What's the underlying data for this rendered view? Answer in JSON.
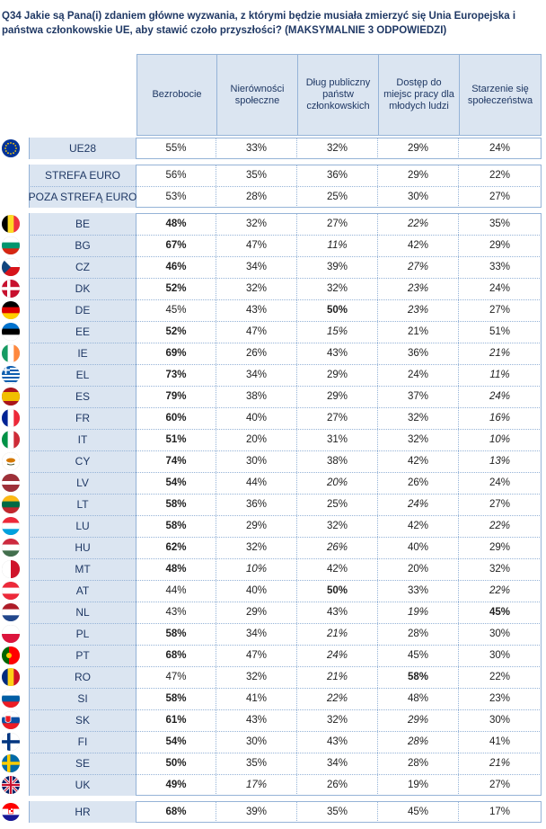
{
  "title": "Q34 Jakie są Pana(i) zdaniem główne wyzwania, z którymi będzie musiała zmierzyć się Unia Europejska i państwa członkowskie UE, aby stawić czoło przyszłości? (MAKSYMALNIE 3 ODPOWIEDZI)",
  "columns": [
    "Bezrobocie",
    "Nierówności społeczne",
    "Dług publiczny państw członkowskich",
    "Dostęp do miejsc pracy dla młodych ludzi",
    "Starzenie się społeczeństwa"
  ],
  "rows": [
    {
      "label": "UE28",
      "flag": "eu",
      "values": [
        "55%",
        "33%",
        "32%",
        "29%",
        "24%"
      ],
      "bold": [],
      "italic": []
    },
    {
      "label": "STREFA EURO",
      "flag": "",
      "values": [
        "56%",
        "35%",
        "36%",
        "29%",
        "22%"
      ],
      "bold": [],
      "italic": []
    },
    {
      "label": "POZA STREFĄ EURO",
      "flag": "",
      "values": [
        "53%",
        "28%",
        "25%",
        "30%",
        "27%"
      ],
      "bold": [],
      "italic": []
    },
    {
      "label": "BE",
      "flag": "be",
      "values": [
        "48%",
        "32%",
        "27%",
        "22%",
        "35%"
      ],
      "bold": [
        0
      ],
      "italic": [
        3
      ]
    },
    {
      "label": "BG",
      "flag": "bg",
      "values": [
        "67%",
        "47%",
        "11%",
        "42%",
        "29%"
      ],
      "bold": [
        0
      ],
      "italic": [
        2
      ]
    },
    {
      "label": "CZ",
      "flag": "cz",
      "values": [
        "46%",
        "34%",
        "39%",
        "27%",
        "33%"
      ],
      "bold": [
        0
      ],
      "italic": [
        3
      ]
    },
    {
      "label": "DK",
      "flag": "dk",
      "values": [
        "52%",
        "32%",
        "32%",
        "23%",
        "24%"
      ],
      "bold": [
        0
      ],
      "italic": [
        3
      ]
    },
    {
      "label": "DE",
      "flag": "de",
      "values": [
        "45%",
        "43%",
        "50%",
        "23%",
        "27%"
      ],
      "bold": [
        2
      ],
      "italic": [
        3
      ]
    },
    {
      "label": "EE",
      "flag": "ee",
      "values": [
        "52%",
        "47%",
        "15%",
        "21%",
        "51%"
      ],
      "bold": [
        0
      ],
      "italic": [
        2
      ]
    },
    {
      "label": "IE",
      "flag": "ie",
      "values": [
        "69%",
        "26%",
        "43%",
        "36%",
        "21%"
      ],
      "bold": [
        0
      ],
      "italic": [
        4
      ]
    },
    {
      "label": "EL",
      "flag": "el",
      "values": [
        "73%",
        "34%",
        "29%",
        "24%",
        "11%"
      ],
      "bold": [
        0
      ],
      "italic": [
        4
      ]
    },
    {
      "label": "ES",
      "flag": "es",
      "values": [
        "79%",
        "38%",
        "29%",
        "37%",
        "24%"
      ],
      "bold": [
        0
      ],
      "italic": [
        4
      ]
    },
    {
      "label": "FR",
      "flag": "fr",
      "values": [
        "60%",
        "40%",
        "27%",
        "32%",
        "16%"
      ],
      "bold": [
        0
      ],
      "italic": [
        4
      ]
    },
    {
      "label": "IT",
      "flag": "it",
      "values": [
        "51%",
        "20%",
        "31%",
        "32%",
        "10%"
      ],
      "bold": [
        0
      ],
      "italic": [
        4
      ]
    },
    {
      "label": "CY",
      "flag": "cy",
      "values": [
        "74%",
        "30%",
        "38%",
        "42%",
        "13%"
      ],
      "bold": [
        0
      ],
      "italic": [
        4
      ]
    },
    {
      "label": "LV",
      "flag": "lv",
      "values": [
        "54%",
        "44%",
        "20%",
        "26%",
        "24%"
      ],
      "bold": [
        0
      ],
      "italic": [
        2
      ]
    },
    {
      "label": "LT",
      "flag": "lt",
      "values": [
        "58%",
        "36%",
        "25%",
        "24%",
        "27%"
      ],
      "bold": [
        0
      ],
      "italic": [
        3
      ]
    },
    {
      "label": "LU",
      "flag": "lu",
      "values": [
        "58%",
        "29%",
        "32%",
        "42%",
        "22%"
      ],
      "bold": [
        0
      ],
      "italic": [
        4
      ]
    },
    {
      "label": "HU",
      "flag": "hu",
      "values": [
        "62%",
        "32%",
        "26%",
        "40%",
        "29%"
      ],
      "bold": [
        0
      ],
      "italic": [
        2
      ]
    },
    {
      "label": "MT",
      "flag": "mt",
      "values": [
        "48%",
        "10%",
        "42%",
        "20%",
        "32%"
      ],
      "bold": [
        0
      ],
      "italic": [
        1
      ]
    },
    {
      "label": "AT",
      "flag": "at",
      "values": [
        "44%",
        "40%",
        "50%",
        "33%",
        "22%"
      ],
      "bold": [
        2
      ],
      "italic": [
        4
      ]
    },
    {
      "label": "NL",
      "flag": "nl",
      "values": [
        "43%",
        "29%",
        "43%",
        "19%",
        "45%"
      ],
      "bold": [
        4
      ],
      "italic": [
        3
      ]
    },
    {
      "label": "PL",
      "flag": "pl",
      "values": [
        "58%",
        "34%",
        "21%",
        "28%",
        "30%"
      ],
      "bold": [
        0
      ],
      "italic": [
        2
      ]
    },
    {
      "label": "PT",
      "flag": "pt",
      "values": [
        "68%",
        "47%",
        "24%",
        "45%",
        "30%"
      ],
      "bold": [
        0
      ],
      "italic": [
        2
      ]
    },
    {
      "label": "RO",
      "flag": "ro",
      "values": [
        "47%",
        "32%",
        "21%",
        "58%",
        "22%"
      ],
      "bold": [
        3
      ],
      "italic": [
        2
      ]
    },
    {
      "label": "SI",
      "flag": "si",
      "values": [
        "58%",
        "41%",
        "22%",
        "48%",
        "23%"
      ],
      "bold": [
        0
      ],
      "italic": [
        2
      ]
    },
    {
      "label": "SK",
      "flag": "sk",
      "values": [
        "61%",
        "43%",
        "32%",
        "29%",
        "30%"
      ],
      "bold": [
        0
      ],
      "italic": [
        3
      ]
    },
    {
      "label": "FI",
      "flag": "fi",
      "values": [
        "54%",
        "30%",
        "43%",
        "28%",
        "41%"
      ],
      "bold": [
        0
      ],
      "italic": [
        3
      ]
    },
    {
      "label": "SE",
      "flag": "se",
      "values": [
        "50%",
        "35%",
        "34%",
        "28%",
        "21%"
      ],
      "bold": [
        0
      ],
      "italic": [
        4
      ]
    },
    {
      "label": "UK",
      "flag": "uk",
      "values": [
        "49%",
        "17%",
        "26%",
        "19%",
        "27%"
      ],
      "bold": [
        0
      ],
      "italic": [
        1
      ]
    },
    {
      "label": "HR",
      "flag": "hr",
      "values": [
        "68%",
        "39%",
        "35%",
        "45%",
        "17%"
      ],
      "bold": [
        0
      ],
      "italic": []
    }
  ],
  "colors": {
    "header_bg": "#dbe5f1",
    "border": "#95b3d7",
    "title": "#1f3864"
  }
}
